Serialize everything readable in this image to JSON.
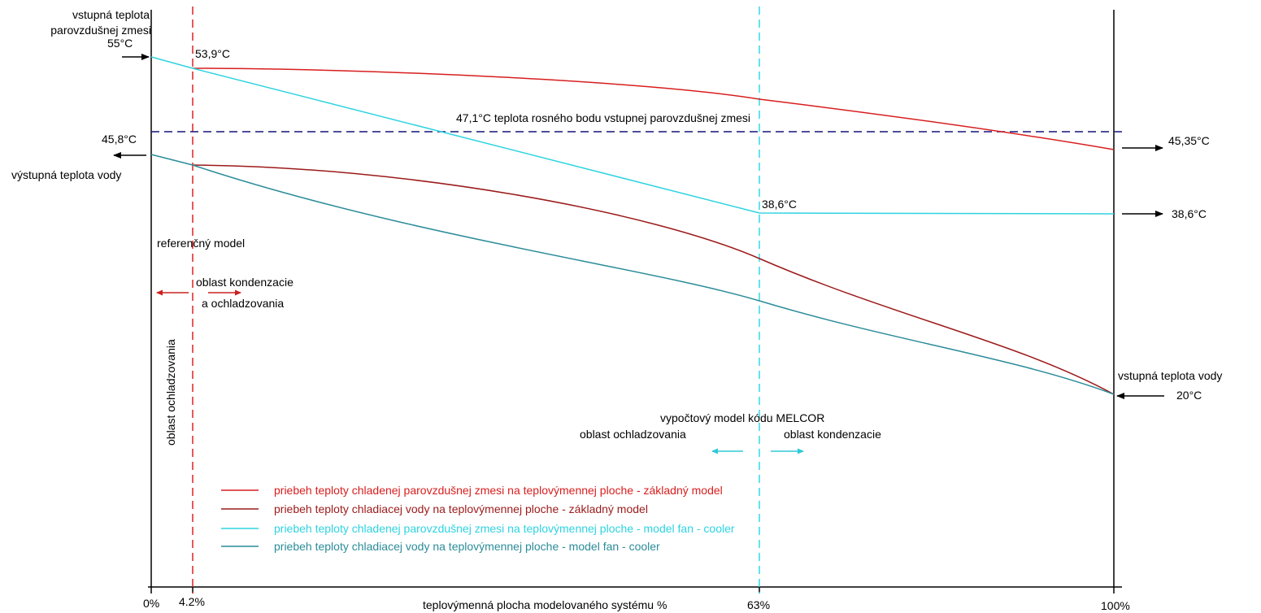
{
  "colors": {
    "gas_base": "#d81e1e",
    "water_base": "#9c1a1a",
    "gas_fancooler": "#2ed3e0",
    "water_fancooler": "#2b8c99",
    "dew_line": "#14147a",
    "ref_boundary": "#e02020",
    "melcor_boundary": "#30d8e8",
    "axis": "#000000",
    "arrow_red": "#cc2020",
    "arrow_cyan": "#30c8d8"
  },
  "labels": {
    "inlet_gas_line1": "vstupná teplota",
    "inlet_gas_line2": "parovzdušnej zmesi",
    "inlet_gas_value": "55°C",
    "point_539": "53,9°C",
    "outlet_water_value": "45,8°C",
    "outlet_water_label": "výstupná teplota vody",
    "dew_point": "47,1°C teplota rosného bodu vstupnej parovzdušnej zmesi",
    "point_386_mid": "38,6°C",
    "right_4535": "45,35°C",
    "right_386": "38,6°C",
    "inlet_water_label": "vstupná teplota vody",
    "inlet_water_value": "20°C",
    "ref_model": "referenčný model",
    "cond_cool_line1": "oblast kondenzacie",
    "cond_cool_line2": "a ochladzovania",
    "cooling_vertical": "oblast ochladzovania",
    "melcor_model": "vypočtový model kódu MELCOR",
    "melcor_cooling": "oblast ochladzovania",
    "melcor_condensation": "oblast kondenzacie"
  },
  "axis": {
    "tick_0": "0%",
    "tick_42": "4.2%",
    "tick_63": "63%",
    "tick_100": "100%",
    "xlabel": "teplovýmenná plocha modelovaného systému %"
  },
  "legend": [
    {
      "label": "priebeh teploty chladenej parovzdušnej zmesi na teplovýmennej ploche - základný model",
      "color": "#d81e1e"
    },
    {
      "label": "priebeh teploty chladiacej vody na teplovýmennej ploche - základný model",
      "color": "#9c1a1a"
    },
    {
      "label": "priebeh teploty chladenej parovzdušnej zmesi na teplovýmennej ploche - model fan - cooler",
      "color": "#2ed3e0"
    },
    {
      "label": "priebeh teploty chladiacej vody na teplovýmennej ploche -  model fan - cooler",
      "color": "#2b8c99"
    }
  ]
}
